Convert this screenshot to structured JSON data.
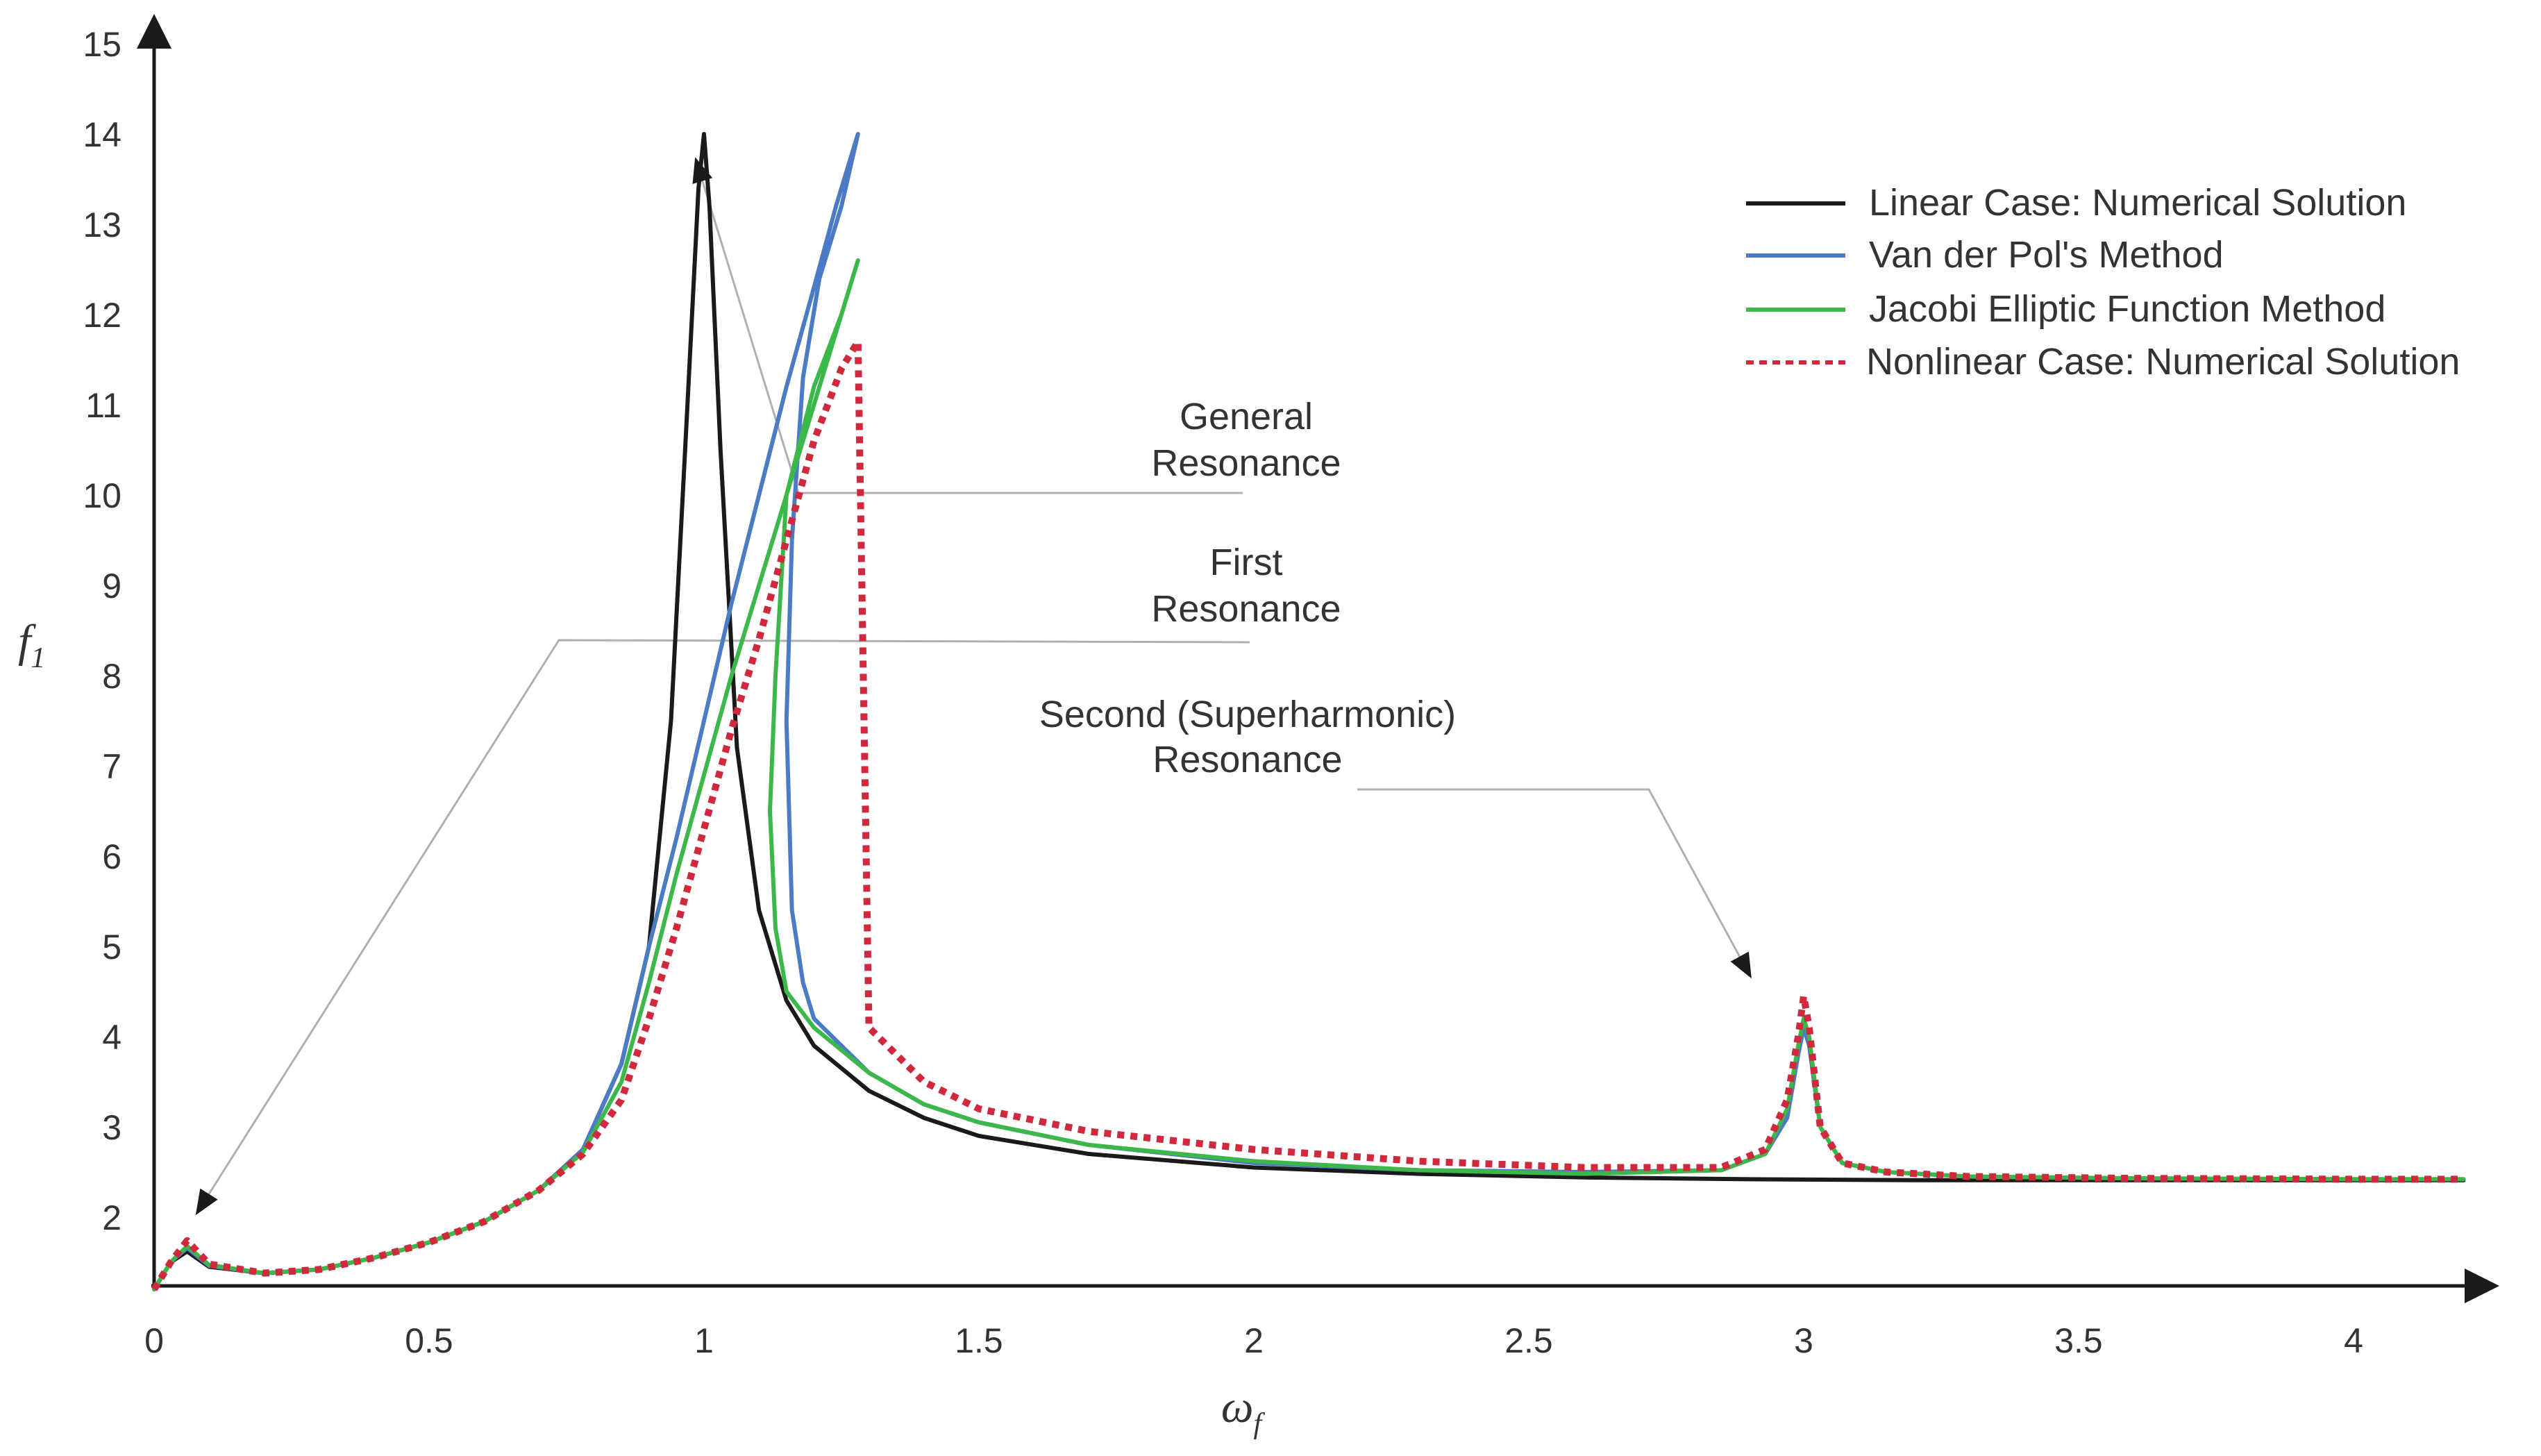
{
  "chart_data": {
    "type": "line",
    "title": "",
    "xlabel": {
      "base": "ω",
      "sub": "f"
    },
    "ylabel": {
      "base": "f",
      "sub": "1"
    },
    "xlim": [
      0,
      4.2
    ],
    "ylim": [
      1.2,
      15
    ],
    "x_ticks": [
      "0",
      "0.5",
      "1",
      "1.5",
      "2",
      "2.5",
      "3",
      "3.5",
      "4"
    ],
    "x_tick_values": [
      0,
      0.5,
      1,
      1.5,
      2,
      2.5,
      3,
      3.5,
      4
    ],
    "y_ticks": [
      "2",
      "3",
      "4",
      "5",
      "6",
      "7",
      "8",
      "9",
      "10",
      "11",
      "12",
      "13",
      "14",
      "15"
    ],
    "y_tick_values": [
      2,
      3,
      4,
      5,
      6,
      7,
      8,
      9,
      10,
      11,
      12,
      13,
      14,
      15
    ],
    "grid": false,
    "legend_position": "top-right",
    "series": [
      {
        "name": "Linear Case: Numerical Solution",
        "color": "#1a1a1a",
        "style": "solid",
        "x": [
          0.0,
          0.03,
          0.06,
          0.1,
          0.2,
          0.3,
          0.4,
          0.5,
          0.6,
          0.7,
          0.78,
          0.85,
          0.9,
          0.94,
          0.97,
          0.99,
          1.0,
          1.01,
          1.03,
          1.06,
          1.1,
          1.15,
          1.2,
          1.3,
          1.4,
          1.5,
          1.7,
          2.0,
          2.3,
          2.6,
          2.9,
          3.2,
          3.6,
          4.0,
          4.2
        ],
        "y": [
          1.2,
          1.5,
          1.62,
          1.45,
          1.38,
          1.42,
          1.55,
          1.72,
          1.95,
          2.3,
          2.75,
          3.7,
          5.0,
          7.5,
          11.0,
          13.4,
          14.0,
          13.2,
          10.5,
          7.2,
          5.4,
          4.4,
          3.9,
          3.4,
          3.1,
          2.9,
          2.7,
          2.55,
          2.48,
          2.44,
          2.42,
          2.41,
          2.41,
          2.41,
          2.41
        ]
      },
      {
        "name": "Van der Pol's Method",
        "color": "#4a7bc4",
        "style": "solid",
        "x": [
          0.0,
          0.03,
          0.06,
          0.1,
          0.2,
          0.3,
          0.4,
          0.5,
          0.6,
          0.7,
          0.78,
          0.85,
          0.9,
          0.95,
          1.0,
          1.05,
          1.1,
          1.15,
          1.2,
          1.24,
          1.27,
          1.28,
          1.25,
          1.21,
          1.18,
          1.16,
          1.15,
          1.16,
          1.18,
          1.2,
          1.3,
          1.4,
          1.5,
          1.7,
          2.0,
          2.3,
          2.6,
          2.85,
          2.93,
          2.97,
          2.99,
          3.0,
          3.01,
          3.03,
          3.07,
          3.15,
          3.3,
          3.6,
          4.0,
          4.2
        ],
        "y": [
          1.2,
          1.5,
          1.66,
          1.46,
          1.38,
          1.42,
          1.55,
          1.72,
          1.95,
          2.3,
          2.75,
          3.7,
          5.0,
          6.2,
          7.5,
          8.8,
          10.0,
          11.2,
          12.3,
          13.2,
          13.8,
          14.0,
          13.2,
          12.4,
          11.3,
          9.5,
          7.5,
          5.4,
          4.6,
          4.2,
          3.6,
          3.25,
          3.05,
          2.8,
          2.6,
          2.52,
          2.5,
          2.52,
          2.7,
          3.1,
          3.8,
          4.1,
          3.9,
          3.0,
          2.6,
          2.5,
          2.45,
          2.43,
          2.42,
          2.42
        ]
      },
      {
        "name": "Jacobi Elliptic Function Method",
        "color": "#3cb84a",
        "style": "solid",
        "x": [
          0.0,
          0.03,
          0.06,
          0.1,
          0.2,
          0.3,
          0.4,
          0.5,
          0.6,
          0.7,
          0.78,
          0.85,
          0.9,
          0.95,
          1.0,
          1.05,
          1.1,
          1.15,
          1.2,
          1.24,
          1.27,
          1.28,
          1.25,
          1.2,
          1.15,
          1.13,
          1.12,
          1.13,
          1.15,
          1.2,
          1.3,
          1.4,
          1.5,
          1.7,
          2.0,
          2.3,
          2.6,
          2.85,
          2.93,
          2.97,
          2.99,
          3.0,
          3.01,
          3.03,
          3.07,
          3.15,
          3.3,
          3.6,
          4.0,
          4.2
        ],
        "y": [
          1.2,
          1.5,
          1.68,
          1.47,
          1.38,
          1.42,
          1.55,
          1.72,
          1.95,
          2.3,
          2.72,
          3.5,
          4.6,
          5.8,
          6.9,
          8.0,
          9.0,
          10.0,
          11.0,
          11.8,
          12.4,
          12.6,
          12.0,
          11.2,
          10.0,
          8.0,
          6.5,
          5.2,
          4.5,
          4.1,
          3.6,
          3.25,
          3.05,
          2.8,
          2.62,
          2.52,
          2.48,
          2.52,
          2.7,
          3.2,
          3.9,
          4.2,
          4.0,
          3.0,
          2.6,
          2.5,
          2.45,
          2.43,
          2.42,
          2.42
        ]
      },
      {
        "name": "Nonlinear Case: Numerical Solution",
        "color": "#d0283c",
        "style": "dashed",
        "x": [
          0.0,
          0.03,
          0.06,
          0.1,
          0.2,
          0.3,
          0.4,
          0.5,
          0.6,
          0.7,
          0.78,
          0.85,
          0.9,
          0.95,
          1.0,
          1.05,
          1.1,
          1.15,
          1.2,
          1.25,
          1.28,
          1.3,
          1.35,
          1.4,
          1.5,
          1.7,
          2.0,
          2.3,
          2.6,
          2.85,
          2.93,
          2.97,
          2.99,
          3.0,
          3.01,
          3.03,
          3.07,
          3.15,
          3.3,
          3.6,
          4.0,
          4.2
        ],
        "y": [
          1.2,
          1.5,
          1.74,
          1.48,
          1.38,
          1.42,
          1.55,
          1.72,
          1.95,
          2.3,
          2.7,
          3.3,
          4.2,
          5.2,
          6.3,
          7.4,
          8.4,
          9.5,
          10.6,
          11.4,
          11.7,
          4.1,
          3.8,
          3.5,
          3.2,
          2.95,
          2.75,
          2.62,
          2.55,
          2.55,
          2.75,
          3.3,
          4.0,
          4.45,
          4.1,
          3.0,
          2.6,
          2.5,
          2.45,
          2.43,
          2.42,
          2.42
        ]
      }
    ],
    "annotations": [
      {
        "lines": [
          "General",
          "Resonance"
        ]
      },
      {
        "lines": [
          "First",
          "Resonance"
        ]
      },
      {
        "lines": [
          "Second (Superharmonic)",
          "Resonance"
        ]
      }
    ]
  }
}
